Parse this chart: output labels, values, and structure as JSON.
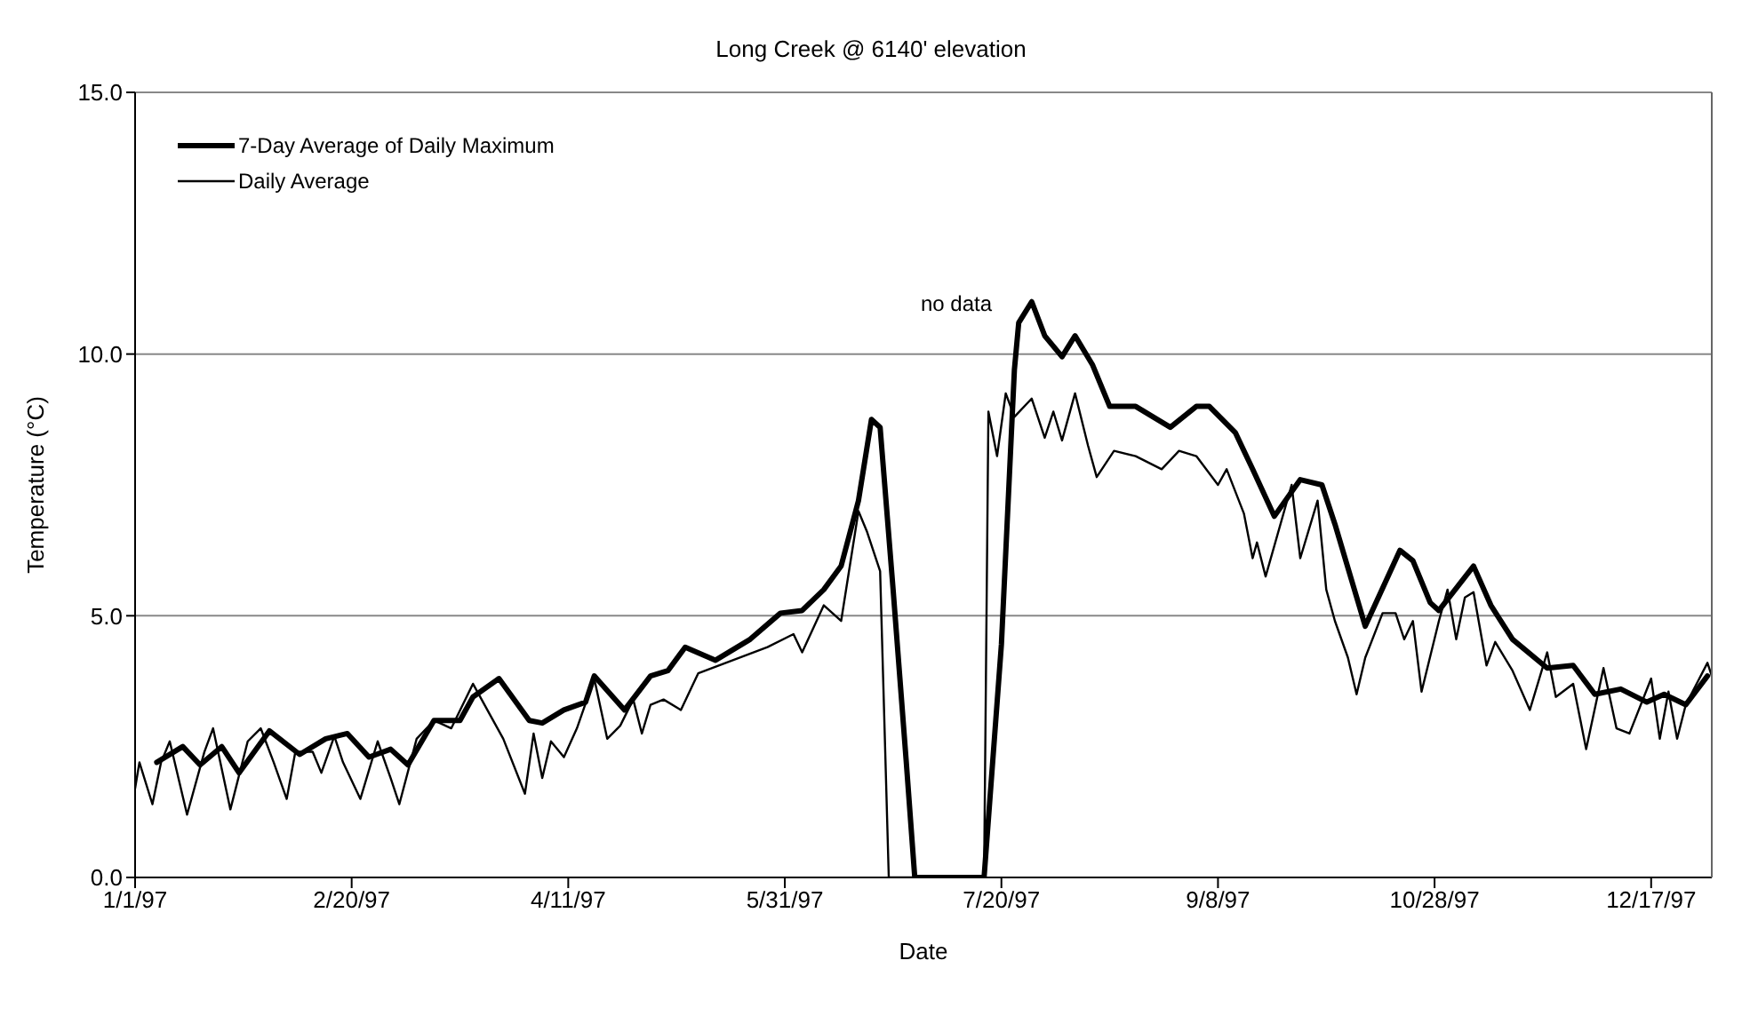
{
  "chart_data": {
    "type": "line",
    "title": "Long Creek @ 6140' elevation",
    "xlabel": "Date",
    "ylabel": "Temperature (°C)",
    "xlim": [
      "1997-01-01",
      "1997-12-31"
    ],
    "xticks": [
      {
        "value": "1997-01-01",
        "label": "1/1/97"
      },
      {
        "value": "1997-02-20",
        "label": "2/20/97"
      },
      {
        "value": "1997-04-11",
        "label": "4/11/97"
      },
      {
        "value": "1997-05-31",
        "label": "5/31/97"
      },
      {
        "value": "1997-07-20",
        "label": "7/20/97"
      },
      {
        "value": "1997-09-08",
        "label": "9/8/97"
      },
      {
        "value": "1997-10-28",
        "label": "10/28/97"
      },
      {
        "value": "1997-12-17",
        "label": "12/17/97"
      }
    ],
    "ylim": [
      0,
      15
    ],
    "yticks": [
      {
        "value": 0,
        "label": "0.0"
      },
      {
        "value": 5,
        "label": "5.0"
      },
      {
        "value": 10,
        "label": "10.0"
      },
      {
        "value": 15,
        "label": "15.0"
      }
    ],
    "grid": "y",
    "legend": "top left",
    "marker": "none",
    "line_style": "solid",
    "annotations": [
      "no data"
    ],
    "series": [
      {
        "name": "7-Day Average of Daily Maximum",
        "color": "#000000",
        "x": [
          "1997-01-06",
          "1997-01-12",
          "1997-01-16",
          "1997-01-21",
          "1997-01-25",
          "1997-02-01",
          "1997-02-08",
          "1997-02-14",
          "1997-02-19",
          "1997-02-24",
          "1997-03-01",
          "1997-03-05",
          "1997-03-11",
          "1997-03-17",
          "1997-03-20",
          "1997-03-26",
          "1997-04-02",
          "1997-04-05",
          "1997-04-10",
          "1997-04-15",
          "1997-04-17",
          "1997-04-24",
          "1997-04-30",
          "1997-05-04",
          "1997-05-08",
          "1997-05-15",
          "1997-05-23",
          "1997-05-30",
          "1997-06-04",
          "1997-06-09",
          "1997-06-13",
          "1997-06-17",
          "1997-06-20",
          "1997-06-22",
          "1997-06-25",
          "1997-06-28",
          "1997-06-30",
          "1997-07-16",
          "1997-07-20",
          "1997-07-23",
          "1997-07-24",
          "1997-07-27",
          "1997-07-30",
          "1997-08-03",
          "1997-08-06",
          "1997-08-10",
          "1997-08-14",
          "1997-08-20",
          "1997-08-28",
          "1997-09-03",
          "1997-09-06",
          "1997-09-12",
          "1997-09-16",
          "1997-09-21",
          "1997-09-27",
          "1997-10-02",
          "1997-10-05",
          "1997-10-12",
          "1997-10-20",
          "1997-10-23",
          "1997-10-27",
          "1997-10-29",
          "1997-11-06",
          "1997-11-10",
          "1997-11-15",
          "1997-11-23",
          "1997-11-29",
          "1997-12-04",
          "1997-12-10",
          "1997-12-16",
          "1997-12-20",
          "1997-12-25",
          "1997-12-30"
        ],
        "values": [
          2.2,
          2.5,
          2.15,
          2.5,
          2.0,
          2.8,
          2.35,
          2.65,
          2.75,
          2.3,
          2.45,
          2.15,
          3.0,
          3.0,
          3.45,
          3.8,
          3.0,
          2.95,
          3.2,
          3.35,
          3.85,
          3.2,
          3.85,
          3.95,
          4.4,
          4.15,
          4.55,
          5.05,
          5.1,
          5.5,
          5.95,
          7.2,
          8.75,
          8.6,
          5.5,
          2.25,
          0,
          0,
          4.45,
          9.7,
          10.6,
          11.0,
          10.35,
          9.95,
          10.35,
          9.8,
          9.0,
          9.0,
          8.6,
          9.0,
          9.0,
          8.5,
          7.8,
          6.9,
          7.6,
          7.5,
          6.75,
          4.8,
          6.25,
          6.05,
          5.25,
          5.1,
          5.95,
          5.2,
          4.55,
          4.0,
          4.05,
          3.5,
          3.6,
          3.35,
          3.5,
          3.3,
          3.85
        ]
      },
      {
        "name": "Daily Average",
        "color": "#000000",
        "x": [
          "1997-01-01",
          "1997-01-02",
          "1997-01-05",
          "1997-01-07",
          "1997-01-09",
          "1997-01-13",
          "1997-01-17",
          "1997-01-19",
          "1997-01-23",
          "1997-01-27",
          "1997-01-30",
          "1997-02-02",
          "1997-02-05",
          "1997-02-07",
          "1997-02-11",
          "1997-02-13",
          "1997-02-16",
          "1997-02-18",
          "1997-02-22",
          "1997-02-26",
          "1997-03-01",
          "1997-03-03",
          "1997-03-07",
          "1997-03-11",
          "1997-03-15",
          "1997-03-20",
          "1997-03-24",
          "1997-03-27",
          "1997-04-01",
          "1997-04-03",
          "1997-04-05",
          "1997-04-07",
          "1997-04-10",
          "1997-04-13",
          "1997-04-17",
          "1997-04-20",
          "1997-04-23",
          "1997-04-26",
          "1997-04-28",
          "1997-04-30",
          "1997-05-03",
          "1997-05-07",
          "1997-05-11",
          "1997-05-19",
          "1997-05-27",
          "1997-06-02",
          "1997-06-04",
          "1997-06-09",
          "1997-06-13",
          "1997-06-17",
          "1997-06-19",
          "1997-06-22",
          "1997-06-24",
          "1997-07-16",
          "1997-07-17",
          "1997-07-19",
          "1997-07-21",
          "1997-07-23",
          "1997-07-27",
          "1997-07-30",
          "1997-08-01",
          "1997-08-03",
          "1997-08-06",
          "1997-08-09",
          "1997-08-11",
          "1997-08-15",
          "1997-08-20",
          "1997-08-26",
          "1997-08-30",
          "1997-09-03",
          "1997-09-08",
          "1997-09-10",
          "1997-09-14",
          "1997-09-16",
          "1997-09-17",
          "1997-09-19",
          "1997-09-25",
          "1997-09-27",
          "1997-10-01",
          "1997-10-03",
          "1997-10-05",
          "1997-10-08",
          "1997-10-10",
          "1997-10-12",
          "1997-10-16",
          "1997-10-19",
          "1997-10-21",
          "1997-10-23",
          "1997-10-25",
          "1997-10-29",
          "1997-10-31",
          "1997-11-02",
          "1997-11-04",
          "1997-11-06",
          "1997-11-09",
          "1997-11-11",
          "1997-11-15",
          "1997-11-19",
          "1997-11-23",
          "1997-11-25",
          "1997-11-29",
          "1997-12-02",
          "1997-12-06",
          "1997-12-09",
          "1997-12-12",
          "1997-12-17",
          "1997-12-19",
          "1997-12-21",
          "1997-12-23",
          "1997-12-25",
          "1997-12-30",
          "1997-12-31"
        ],
        "values": [
          1.7,
          2.2,
          1.4,
          2.2,
          2.6,
          1.2,
          2.4,
          2.85,
          1.3,
          2.6,
          2.85,
          2.2,
          1.5,
          2.4,
          2.4,
          2.0,
          2.7,
          2.2,
          1.5,
          2.6,
          1.9,
          1.4,
          2.65,
          3.0,
          2.85,
          3.7,
          3.1,
          2.65,
          1.6,
          2.75,
          1.9,
          2.6,
          2.3,
          2.85,
          3.8,
          2.65,
          2.9,
          3.4,
          2.75,
          3.3,
          3.4,
          3.2,
          3.9,
          4.15,
          4.4,
          4.65,
          4.3,
          5.2,
          4.9,
          7.0,
          6.6,
          5.85,
          0,
          0,
          8.9,
          8.05,
          9.25,
          8.8,
          9.15,
          8.4,
          8.9,
          8.35,
          9.25,
          8.25,
          7.65,
          8.15,
          8.05,
          7.8,
          8.15,
          8.05,
          7.5,
          7.8,
          6.95,
          6.1,
          6.4,
          5.75,
          7.5,
          6.1,
          7.2,
          5.5,
          4.9,
          4.2,
          3.5,
          4.2,
          5.05,
          5.05,
          4.55,
          4.9,
          3.55,
          4.9,
          5.5,
          4.55,
          5.35,
          5.45,
          4.05,
          4.5,
          3.95,
          3.2,
          4.3,
          3.45,
          3.7,
          2.45,
          4.0,
          2.85,
          2.75,
          3.8,
          2.65,
          3.55,
          2.65,
          3.3,
          4.1,
          3.85
        ]
      }
    ]
  }
}
